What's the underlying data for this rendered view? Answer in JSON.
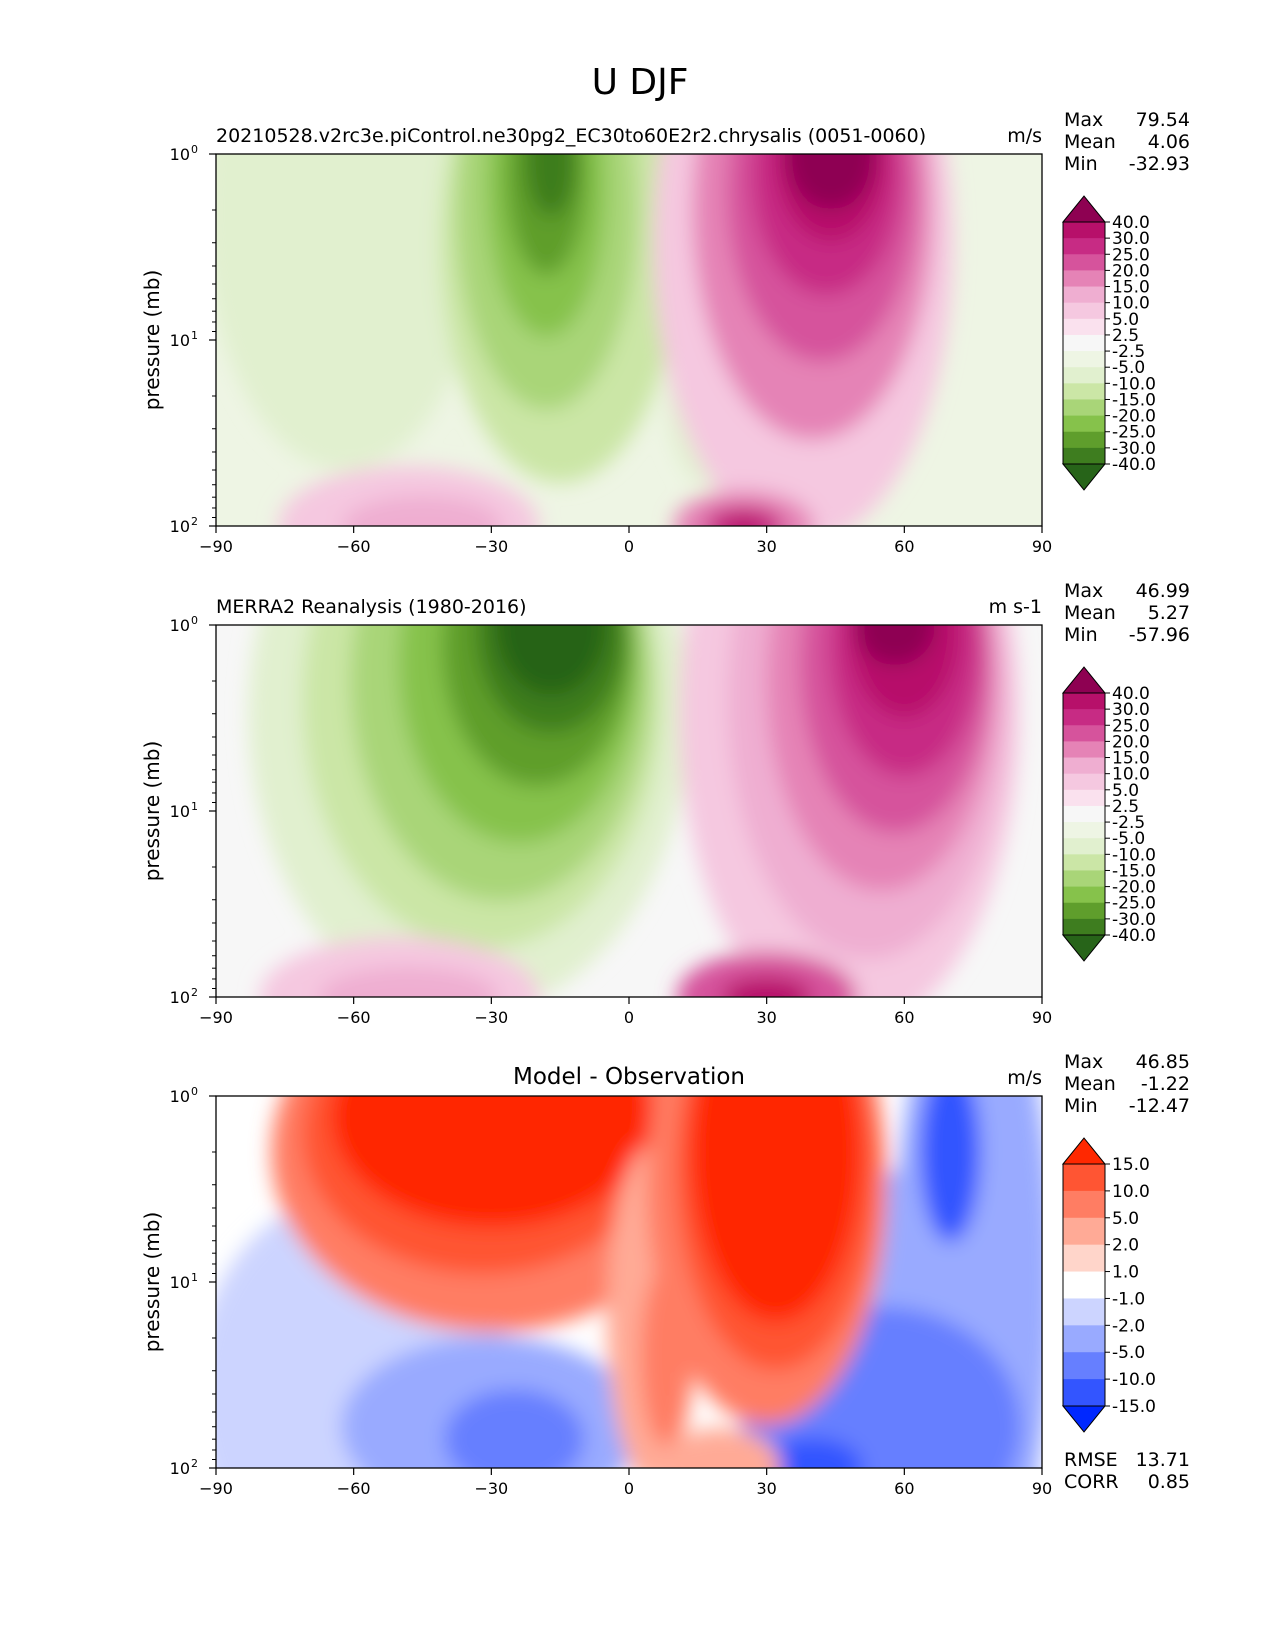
{
  "figure_title": "U DJF",
  "chart_data": [
    {
      "type": "heatmap",
      "title": "20210528.v2rc3e.piControl.ne30pg2_EC30to60E2r2.chrysalis (0051-0060)",
      "units": "m/s",
      "ylabel": "pressure (mb)",
      "xlim": [
        -90,
        90
      ],
      "ylim": [
        100,
        1
      ],
      "yscale": "log",
      "x_ticks": [
        "−90",
        "−60",
        "−30",
        "0",
        "30",
        "60",
        "90"
      ],
      "stats": [
        {
          "label": "Max",
          "value": "79.54"
        },
        {
          "label": "Mean",
          "value": "4.06"
        },
        {
          "label": "Min",
          "value": "-32.93"
        }
      ],
      "colorbar": {
        "levels": [
          "40.0",
          "30.0",
          "25.0",
          "20.0",
          "15.0",
          "10.0",
          "5.0",
          "2.5",
          "-2.5",
          "-5.0",
          "-10.0",
          "-15.0",
          "-20.0",
          "-25.0",
          "-30.0",
          "-40.0"
        ],
        "colors": [
          "#8e0152",
          "#b7106a",
          "#c72b84",
          "#d6539c",
          "#e583b6",
          "#efaed1",
          "#f5c8e0",
          "#fae1ee",
          "#f7f7f7",
          "#eef5e4",
          "#e1f0cf",
          "#cbe6a6",
          "#a9d578",
          "#86c24b",
          "#5f9e2c",
          "#3e7d1f",
          "#276419"
        ]
      }
    },
    {
      "type": "heatmap",
      "title": "MERRA2 Reanalysis (1980-2016)",
      "units": "m s-1",
      "ylabel": "pressure (mb)",
      "xlim": [
        -90,
        90
      ],
      "ylim": [
        100,
        1
      ],
      "yscale": "log",
      "x_ticks": [
        "−90",
        "−60",
        "−30",
        "0",
        "30",
        "60",
        "90"
      ],
      "stats": [
        {
          "label": "Max",
          "value": "46.99"
        },
        {
          "label": "Mean",
          "value": "5.27"
        },
        {
          "label": "Min",
          "value": "-57.96"
        }
      ],
      "colorbar": {
        "levels": [
          "40.0",
          "30.0",
          "25.0",
          "20.0",
          "15.0",
          "10.0",
          "5.0",
          "2.5",
          "-2.5",
          "-5.0",
          "-10.0",
          "-15.0",
          "-20.0",
          "-25.0",
          "-30.0",
          "-40.0"
        ],
        "colors": [
          "#8e0152",
          "#b7106a",
          "#c72b84",
          "#d6539c",
          "#e583b6",
          "#efaed1",
          "#f5c8e0",
          "#fae1ee",
          "#f7f7f7",
          "#eef5e4",
          "#e1f0cf",
          "#cbe6a6",
          "#a9d578",
          "#86c24b",
          "#5f9e2c",
          "#3e7d1f",
          "#276419"
        ]
      }
    },
    {
      "type": "heatmap",
      "title": "Model - Observation",
      "units": "m/s",
      "ylabel": "pressure (mb)",
      "xlim": [
        -90,
        90
      ],
      "ylim": [
        100,
        1
      ],
      "yscale": "log",
      "x_ticks": [
        "−90",
        "−60",
        "−30",
        "0",
        "30",
        "60",
        "90"
      ],
      "stats": [
        {
          "label": "Max",
          "value": "46.85"
        },
        {
          "label": "Mean",
          "value": "-1.22"
        },
        {
          "label": "Min",
          "value": "-12.47"
        }
      ],
      "extra_stats": [
        {
          "label": "RMSE",
          "value": "13.71"
        },
        {
          "label": "CORR",
          "value": "0.85"
        }
      ],
      "colorbar": {
        "levels": [
          "15.0",
          "10.0",
          "5.0",
          "2.0",
          "1.0",
          "-1.0",
          "-2.0",
          "-5.0",
          "-10.0",
          "-15.0"
        ],
        "colors": [
          "#ff2800",
          "#ff5533",
          "#ff7d63",
          "#ffaa96",
          "#ffd5ca",
          "#ffffff",
          "#ccd4ff",
          "#99aaff",
          "#667fff",
          "#3355ff",
          "#0028ff"
        ]
      }
    }
  ]
}
